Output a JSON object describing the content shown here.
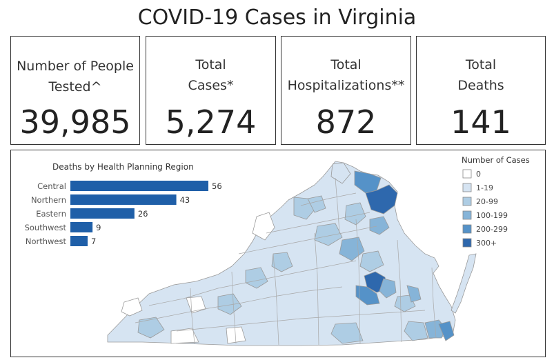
{
  "title": "COVID-19 Cases in Virginia",
  "cards": [
    {
      "label": "Number of People\nTested^",
      "value": "39,985"
    },
    {
      "label": "Total\nCases*",
      "value": "5,274"
    },
    {
      "label": "Total\nHospitalizations**",
      "value": "872"
    },
    {
      "label": "Total\nDeaths",
      "value": "141"
    }
  ],
  "chart_data": {
    "type": "bar",
    "orientation": "horizontal",
    "title": "Deaths by Health Planning Region",
    "categories": [
      "Central",
      "Northern",
      "Eastern",
      "Southwest",
      "Northwest"
    ],
    "values": [
      56,
      43,
      26,
      9,
      7
    ],
    "bar_color": "#1f5fa8",
    "grid": false
  },
  "map_legend": {
    "title": "Number of Cases",
    "items": [
      {
        "label": "0",
        "color": "#ffffff"
      },
      {
        "label": "1-19",
        "color": "#d6e4f2"
      },
      {
        "label": "20-99",
        "color": "#aecde4"
      },
      {
        "label": "100-199",
        "color": "#86b4d8"
      },
      {
        "label": "200-299",
        "color": "#5592c8"
      },
      {
        "label": "300+",
        "color": "#2e68ad"
      }
    ]
  }
}
